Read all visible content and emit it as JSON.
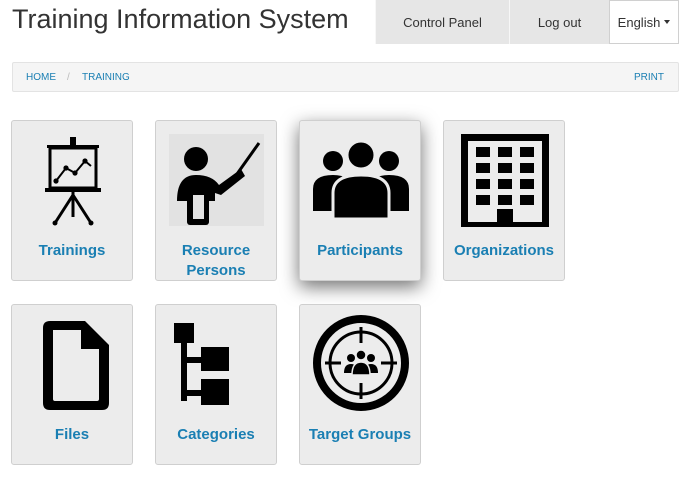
{
  "app": {
    "title": "Training Information System"
  },
  "nav": {
    "control_panel": "Control Panel",
    "logout": "Log out",
    "language": "English"
  },
  "breadcrumb": {
    "home": "HOME",
    "separator": "/",
    "current": "TRAINING",
    "print": "PRINT"
  },
  "tiles": [
    {
      "label": "Trainings",
      "icon": "presentation-chart-icon"
    },
    {
      "label": "Resource Persons",
      "icon": "presenter-icon"
    },
    {
      "label": "Participants",
      "icon": "people-group-icon"
    },
    {
      "label": "Organizations",
      "icon": "building-icon"
    },
    {
      "label": "Files",
      "icon": "file-icon"
    },
    {
      "label": "Categories",
      "icon": "hierarchy-icon"
    },
    {
      "label": "Target Groups",
      "icon": "target-group-icon"
    }
  ],
  "colors": {
    "link": "#1a7fb3",
    "tile_bg": "#ececec",
    "nav_bg": "#e6e6e6"
  }
}
